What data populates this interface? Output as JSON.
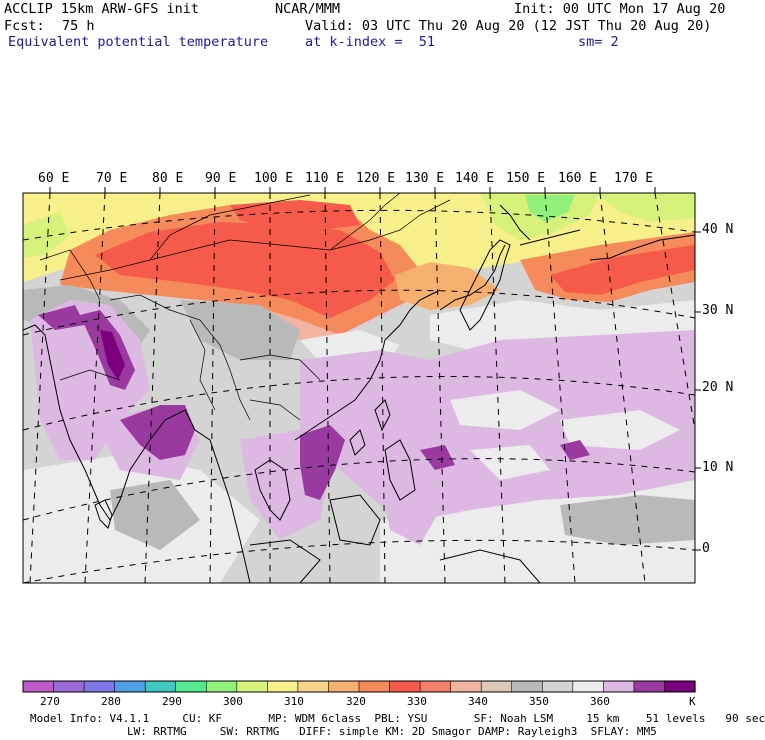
{
  "header": {
    "model": "ACCLIP 15km ARW-GFS init",
    "org": "NCAR/MMM",
    "init": "Init: 00 UTC Mon 17 Aug 20",
    "fcst_label": "Fcst:",
    "fcst_value": "75 h",
    "valid": "Valid: 03 UTC Thu 20 Aug 20 (12 JST Thu 20 Aug 20)",
    "field": "Equivalent potential temperature",
    "level": "at k-index =  51",
    "smoothing": "sm= 2"
  },
  "map": {
    "lon_labels": [
      "60 E",
      "70 E",
      "80 E",
      "90 E",
      "100 E",
      "110 E",
      "120 E",
      "130 E",
      "140 E",
      "150 E",
      "160 E",
      "170 E"
    ],
    "lat_labels": [
      "40 N",
      "30 N",
      "20 N",
      "10 N",
      "0"
    ]
  },
  "colorbar": {
    "unit": "K",
    "tick_labels": [
      "270",
      "280",
      "290",
      "300",
      "310",
      "320",
      "330",
      "340",
      "350",
      "360"
    ],
    "colors": [
      "#c05ac8",
      "#9a6ad8",
      "#7f78e6",
      "#4f9ee8",
      "#3ec8c0",
      "#55e890",
      "#90f07a",
      "#d6f27a",
      "#f6ef8a",
      "#f7d48a",
      "#f5b070",
      "#f58a5a",
      "#f55a4a",
      "#f5806a",
      "#f2b3a0",
      "#dcc8b8",
      "#b9b9b9",
      "#d2d2d2",
      "#ececec",
      "#dcb8e2",
      "#9a3aa0",
      "#7a007e"
    ]
  },
  "footer": {
    "line1": "Model Info: V4.1.1     CU: KF       MP: WDM 6class  PBL: YSU       SF: Noah LSM     15 km    51 levels   90 sec",
    "line2": "LW: RRTMG     SW: RRTMG   DIFF: simple KM: 2D Smagor DAMP: Rayleigh3  SFLAY: MM5"
  }
}
